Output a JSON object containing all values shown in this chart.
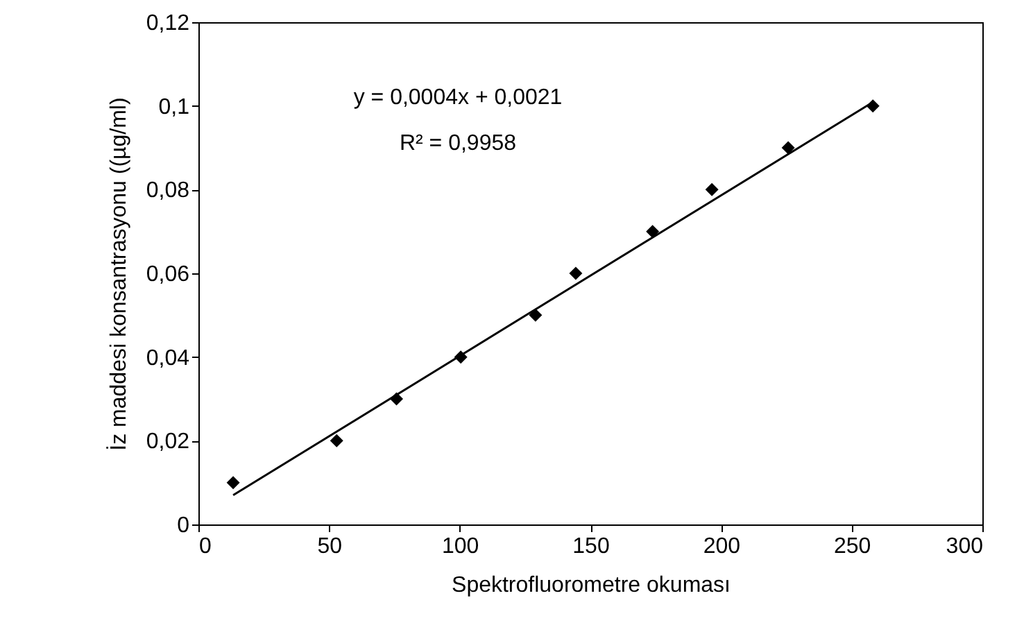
{
  "chart_data": {
    "type": "scatter",
    "xlabel": "Spektrofluorometre okuması",
    "ylabel": "İz maddesi konsantrasyonu ((µg/ml)",
    "x": [
      13.3,
      52.9,
      75.8,
      100.4,
      129,
      144.4,
      173.8,
      196.5,
      225.7,
      258.1
    ],
    "series": [
      {
        "color": "#000000",
        "marker": "diamond",
        "values": [
          0.01,
          0.02,
          0.03,
          0.04,
          0.05,
          0.06,
          0.07,
          0.08,
          0.09,
          0.1
        ]
      },
      {
        "type": "line",
        "color": "#000000",
        "x": [
          13.3,
          258.1
        ],
        "values": [
          0.007,
          0.1009
        ]
      }
    ],
    "xlim": [
      0,
      300
    ],
    "xticks": [
      0,
      50,
      100,
      150,
      200,
      250,
      300
    ],
    "ylim": [
      0,
      0.12
    ],
    "yticks": [
      0,
      {
        "value": 0.02,
        "label": "0,02"
      },
      {
        "value": 0.04,
        "label": "0,04"
      },
      {
        "value": 0.06,
        "label": "0,06"
      },
      {
        "value": 0.08,
        "label": "0,08"
      },
      {
        "value": 0.1,
        "label": "0,1"
      },
      {
        "value": 0.12,
        "label": "0,12"
      }
    ],
    "grid": false,
    "annotations": [
      "y = 0,0004x + 0,0021",
      "R² = 0,9958"
    ]
  }
}
